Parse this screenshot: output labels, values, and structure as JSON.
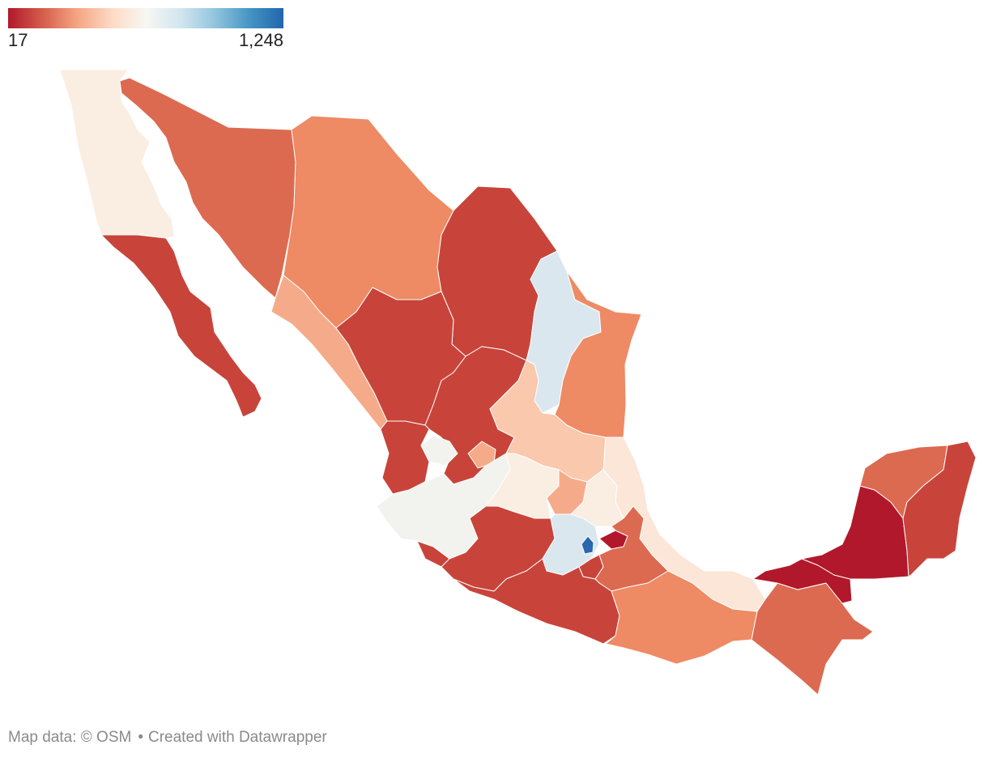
{
  "legend": {
    "min_label": "17",
    "max_label": "1,248",
    "gradient_colors": [
      "#b2182b",
      "#d6604d",
      "#f4a582",
      "#fddbc7",
      "#f7f7f2",
      "#d1e5f0",
      "#92c5de",
      "#4393c3",
      "#2166ac"
    ]
  },
  "footer": {
    "map_source": "Map data: © OSM",
    "separator": "•",
    "created_with": "Created with Datawrapper"
  },
  "colors": {
    "darkest_red": "#b2182b",
    "red": "#c8443a",
    "orange_red": "#dc6a50",
    "orange": "#ee8a64",
    "light_orange": "#f5ab8a",
    "peach": "#f9c8ad",
    "pale_peach": "#fbe6d8",
    "cream": "#faede1",
    "neutral": "#f2f2ee",
    "pale_blue": "#dbe7ef",
    "blue": "#2a67ac"
  },
  "states": [
    {
      "id": "baja-california",
      "color": "cream"
    },
    {
      "id": "baja-california-sur",
      "color": "red"
    },
    {
      "id": "sonora",
      "color": "orange_red"
    },
    {
      "id": "chihuahua",
      "color": "orange"
    },
    {
      "id": "coahuila",
      "color": "red"
    },
    {
      "id": "nuevo-leon",
      "color": "pale_blue"
    },
    {
      "id": "tamaulipas",
      "color": "orange"
    },
    {
      "id": "sinaloa",
      "color": "light_orange"
    },
    {
      "id": "durango",
      "color": "red"
    },
    {
      "id": "zacatecas",
      "color": "red"
    },
    {
      "id": "nayarit",
      "color": "red"
    },
    {
      "id": "aguascalientes",
      "color": "light_orange"
    },
    {
      "id": "san-luis-potosi",
      "color": "peach"
    },
    {
      "id": "jalisco",
      "color": "neutral"
    },
    {
      "id": "jalisco-north",
      "color": "neutral"
    },
    {
      "id": "guanajuato",
      "color": "cream"
    },
    {
      "id": "queretaro",
      "color": "light_orange"
    },
    {
      "id": "hidalgo",
      "color": "cream"
    },
    {
      "id": "veracruz",
      "color": "pale_peach"
    },
    {
      "id": "colima",
      "color": "red"
    },
    {
      "id": "michoacan",
      "color": "red"
    },
    {
      "id": "estado-de-mexico",
      "color": "pale_blue"
    },
    {
      "id": "ciudad-de-mexico",
      "color": "blue"
    },
    {
      "id": "morelos",
      "color": "red"
    },
    {
      "id": "tlaxcala",
      "color": "darkest_red"
    },
    {
      "id": "puebla",
      "color": "orange_red"
    },
    {
      "id": "guerrero",
      "color": "red"
    },
    {
      "id": "oaxaca",
      "color": "orange"
    },
    {
      "id": "chiapas",
      "color": "orange_red"
    },
    {
      "id": "tabasco",
      "color": "darkest_red"
    },
    {
      "id": "campeche",
      "color": "darkest_red"
    },
    {
      "id": "yucatan",
      "color": "orange_red"
    },
    {
      "id": "quintana-roo",
      "color": "red"
    }
  ]
}
